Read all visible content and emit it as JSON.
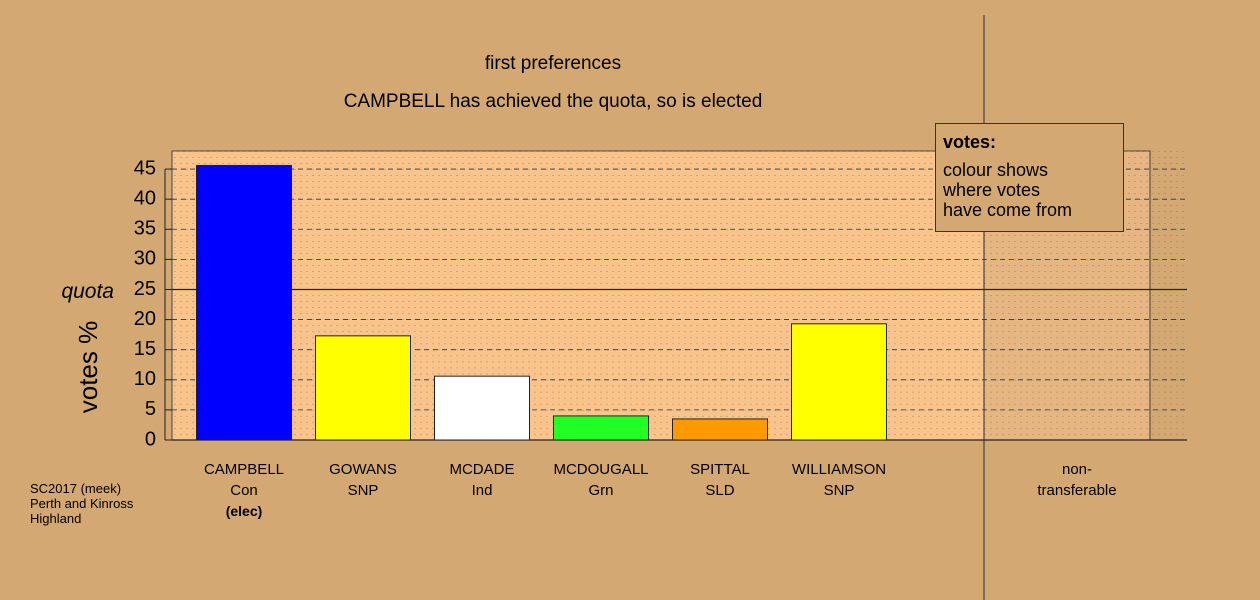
{
  "chart_data": {
    "type": "bar",
    "title": "first preferences",
    "subtitle": "CAMPBELL has achieved the quota, so is elected",
    "ylabel": "votes %",
    "categories": [
      "CAMPBELL\nCon",
      "GOWANS\nSNP",
      "MCDADE\nInd",
      "MCDOUGALL\nGrn",
      "SPITTAL\nSLD",
      "WILLIAMSON\nSNP",
      null,
      "non-\ntransferable"
    ],
    "status": [
      "(elec)",
      null,
      null,
      null,
      null,
      null,
      null,
      null
    ],
    "values": [
      45.6,
      17.3,
      10.6,
      4.0,
      3.5,
      19.3,
      null,
      0
    ],
    "colors": [
      "#0000ff",
      "#ffff00",
      "#ffffff",
      "#22ff22",
      "#ff9900",
      "#ffff00",
      null,
      "#888888"
    ],
    "ylim": [
      0,
      48
    ],
    "yticks": [
      0,
      5,
      10,
      15,
      20,
      25,
      30,
      35,
      40,
      45
    ],
    "grid": true,
    "quota": {
      "value": 25,
      "label": "quota"
    },
    "legend_title": "votes:",
    "legend_text": [
      "colour shows",
      "where votes",
      "have come from"
    ],
    "notes": [
      "SC2017 (meek)",
      "Perth and Kinross",
      "Highland"
    ]
  }
}
